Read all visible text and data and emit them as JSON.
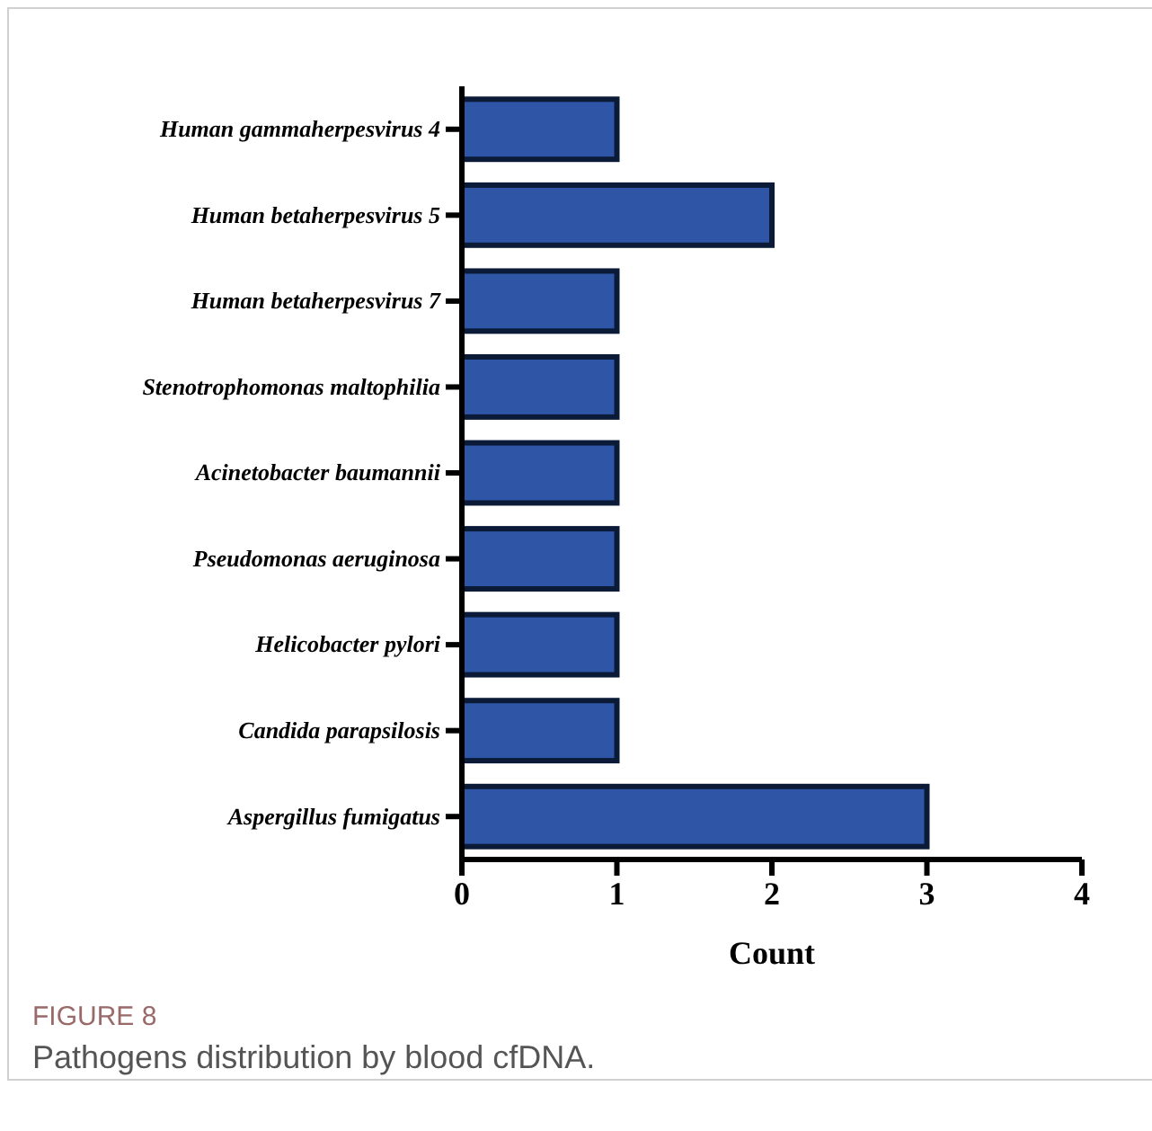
{
  "chart_data": {
    "type": "bar",
    "orientation": "horizontal",
    "categories": [
      "Human gammaherpesvirus 4",
      "Human betaherpesvirus 5",
      "Human betaherpesvirus 7",
      "Stenotrophomonas maltophilia",
      "Acinetobacter baumannii",
      "Pseudomonas aeruginosa",
      "Helicobacter pylori",
      "Candida parapsilosis",
      "Aspergillus fumigatus"
    ],
    "values": [
      1,
      2,
      1,
      1,
      1,
      1,
      1,
      1,
      3
    ],
    "color": "#2f56a6",
    "xlim": [
      0,
      4
    ],
    "xticks": [
      0,
      1,
      2,
      3,
      4
    ],
    "xlabel": "Count",
    "grid": false,
    "annotations": [
      "FIGURE 8",
      "Pathogens distribution by blood cfDNA."
    ]
  }
}
